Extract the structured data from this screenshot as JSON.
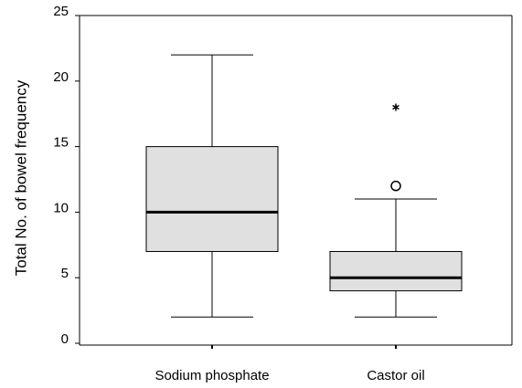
{
  "chart_data": {
    "type": "box",
    "ylabel": "Total No. of bowel frequency",
    "categories": [
      "Sodium phosphate",
      "Castor oil"
    ],
    "boxes": [
      {
        "min": 2,
        "q1": 7,
        "median": 10,
        "q3": 15,
        "max": 22,
        "outliers": [],
        "extremes": []
      },
      {
        "min": 2,
        "q1": 4,
        "median": 5,
        "q3": 7,
        "max": 11,
        "outliers": [
          12
        ],
        "extremes": [
          18
        ]
      }
    ],
    "color": "#e0e0e0",
    "ylim": [
      0,
      25
    ],
    "yticks": [
      0,
      5,
      10,
      15,
      20,
      25
    ]
  }
}
